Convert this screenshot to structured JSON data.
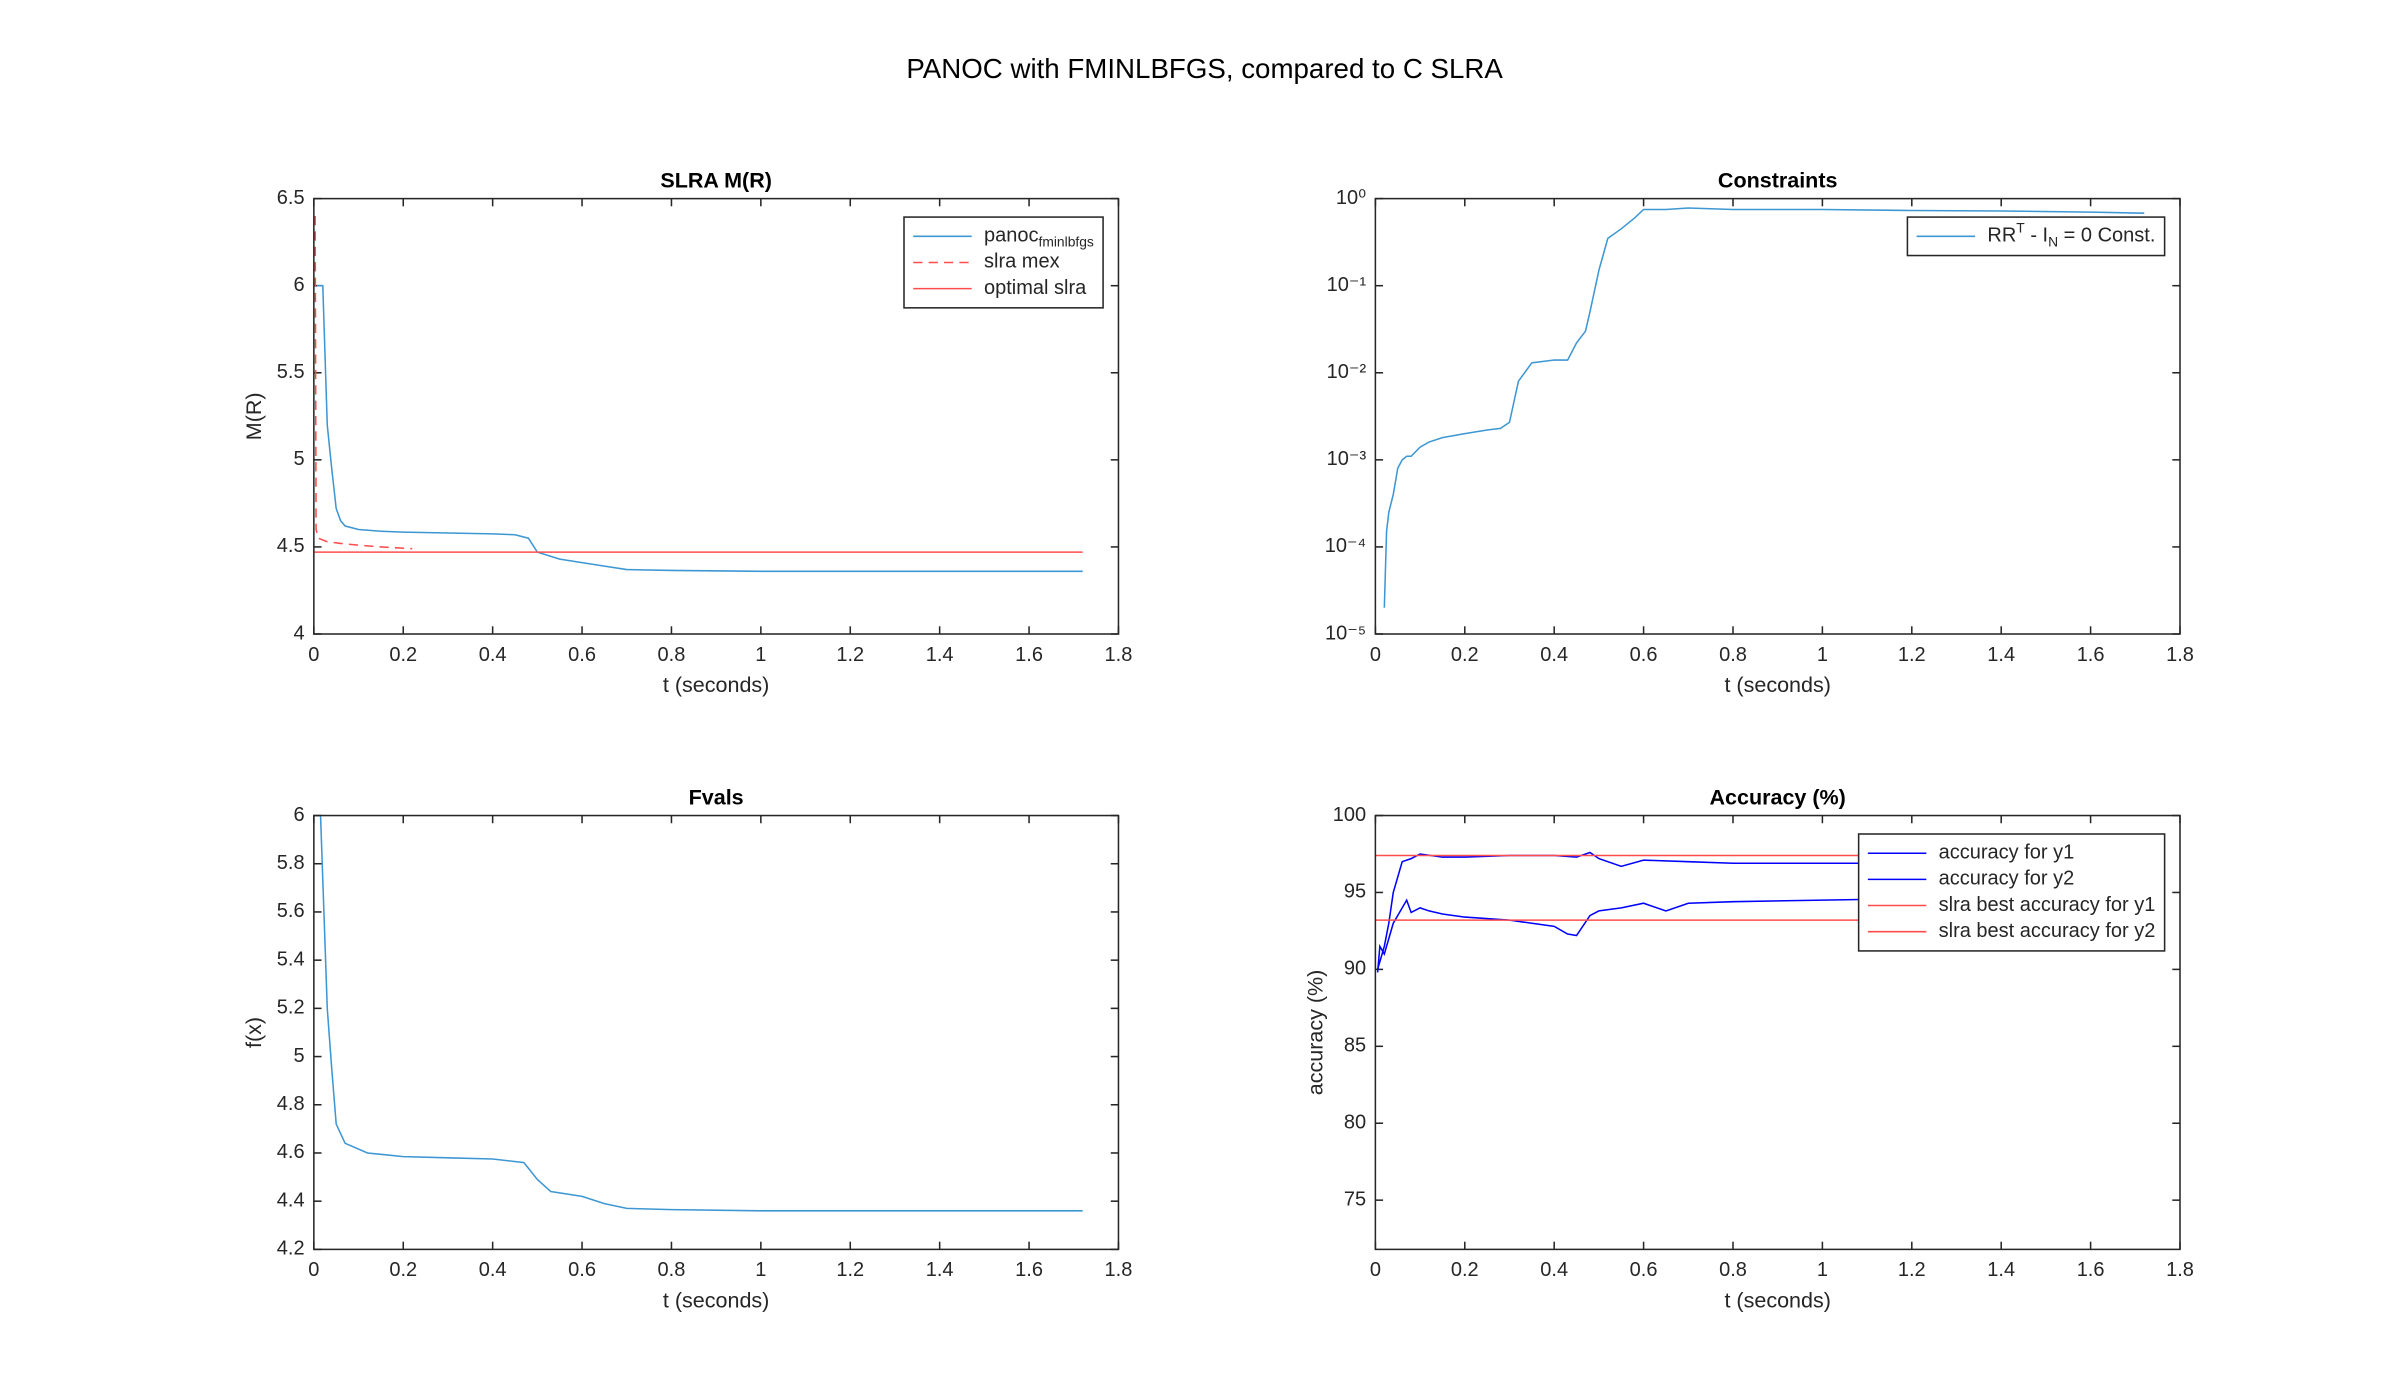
{
  "title": "PANOC with FMINLBFGS, compared to C SLRA",
  "chart_data": [
    {
      "type": "line",
      "title": "SLRA M(R)",
      "xlabel": "t (seconds)",
      "ylabel": "M(R)",
      "xlim": [
        0,
        1.8
      ],
      "xticks": [
        0,
        0.2,
        0.4,
        0.6,
        0.8,
        1,
        1.2,
        1.4,
        1.6,
        1.8
      ],
      "ylim": [
        4,
        6.5
      ],
      "yticks": [
        4,
        4.5,
        5,
        5.5,
        6,
        6.5
      ],
      "legend": "northeast",
      "series": [
        {
          "name": [
            "panoc",
            "fminlbfgs"
          ],
          "color": "#3d97d3",
          "linestyle": "solid",
          "x": [
            0.007,
            0.015,
            0.02,
            0.03,
            0.04,
            0.05,
            0.06,
            0.07,
            0.1,
            0.15,
            0.2,
            0.3,
            0.4,
            0.45,
            0.48,
            0.5,
            0.55,
            0.6,
            0.65,
            0.7,
            0.8,
            1.0,
            1.2,
            1.4,
            1.6,
            1.72
          ],
          "values": [
            6.0,
            6.0,
            6.0,
            5.2,
            4.95,
            4.72,
            4.65,
            4.62,
            4.6,
            4.59,
            4.585,
            4.58,
            4.575,
            4.57,
            4.55,
            4.47,
            4.43,
            4.41,
            4.39,
            4.37,
            4.365,
            4.36,
            4.36,
            4.36,
            4.36,
            4.36
          ]
        },
        {
          "name": "slra mex",
          "color": "#ff4d4d",
          "linestyle": "dashed",
          "x": [
            0.003,
            0.005,
            0.01,
            0.03,
            0.06,
            0.1,
            0.15,
            0.22
          ],
          "values": [
            6.4,
            4.6,
            4.55,
            4.53,
            4.52,
            4.51,
            4.5,
            4.49
          ]
        },
        {
          "name": "optimal slra",
          "color": "#ff4d4d",
          "linestyle": "solid",
          "x": [
            0,
            1.72
          ],
          "values": [
            4.47,
            4.47
          ]
        }
      ]
    },
    {
      "type": "line",
      "title": "Constraints",
      "xlabel": "t (seconds)",
      "xlim": [
        0,
        1.8
      ],
      "xticks": [
        0,
        0.2,
        0.4,
        0.6,
        0.8,
        1,
        1.2,
        1.4,
        1.6,
        1.8
      ],
      "yscale": "log",
      "ylim": [
        1e-05,
        1
      ],
      "yticks": [
        {
          "value": 1e-05,
          "label": "10⁻⁵"
        },
        {
          "value": 0.0001,
          "label": "10⁻⁴"
        },
        {
          "value": 0.001,
          "label": "10⁻³"
        },
        {
          "value": 0.01,
          "label": "10⁻²"
        },
        {
          "value": 0.1,
          "label": "10⁻¹"
        },
        {
          "value": 1,
          "label": "10⁰"
        }
      ],
      "legend": "northeast",
      "series": [
        {
          "name": [
            "RR",
            "T",
            " - I",
            "N",
            " = 0 Const."
          ],
          "color": "#3d97d3",
          "linestyle": "solid",
          "x": [
            0.02,
            0.025,
            0.03,
            0.04,
            0.05,
            0.06,
            0.07,
            0.08,
            0.1,
            0.12,
            0.15,
            0.2,
            0.25,
            0.28,
            0.3,
            0.32,
            0.35,
            0.4,
            0.43,
            0.45,
            0.47,
            0.48,
            0.5,
            0.52,
            0.55,
            0.58,
            0.6,
            0.65,
            0.7,
            0.8,
            1.0,
            1.2,
            1.4,
            1.6,
            1.72
          ],
          "values": [
            2e-05,
            0.00015,
            0.00025,
            0.0004,
            0.0008,
            0.001,
            0.0011,
            0.0011,
            0.0014,
            0.0016,
            0.0018,
            0.002,
            0.0022,
            0.0023,
            0.0027,
            0.008,
            0.013,
            0.014,
            0.014,
            0.022,
            0.03,
            0.05,
            0.15,
            0.35,
            0.45,
            0.6,
            0.75,
            0.75,
            0.78,
            0.75,
            0.75,
            0.73,
            0.72,
            0.7,
            0.68
          ]
        }
      ]
    },
    {
      "type": "line",
      "title": "Fvals",
      "xlabel": "t (seconds)",
      "ylabel": "f(x)",
      "xlim": [
        0,
        1.8
      ],
      "xticks": [
        0,
        0.2,
        0.4,
        0.6,
        0.8,
        1,
        1.2,
        1.4,
        1.6,
        1.8
      ],
      "ylim": [
        4.2,
        6
      ],
      "yticks": [
        4.2,
        4.4,
        4.6,
        4.8,
        5,
        5.2,
        5.4,
        5.6,
        5.8,
        6
      ],
      "series": [
        {
          "color": "#3d97d3",
          "linestyle": "solid",
          "x": [
            0.015,
            0.03,
            0.04,
            0.05,
            0.07,
            0.12,
            0.2,
            0.3,
            0.4,
            0.47,
            0.5,
            0.53,
            0.6,
            0.65,
            0.7,
            0.8,
            1.0,
            1.2,
            1.72
          ],
          "values": [
            6,
            5.2,
            4.95,
            4.72,
            4.64,
            4.6,
            4.585,
            4.58,
            4.575,
            4.56,
            4.49,
            4.44,
            4.42,
            4.39,
            4.37,
            4.365,
            4.36,
            4.36,
            4.36
          ]
        }
      ]
    },
    {
      "type": "line",
      "title": "Accuracy (%)",
      "xlabel": "t (seconds)",
      "ylabel": "accuracy (%)",
      "xlim": [
        0,
        1.8
      ],
      "xticks": [
        0,
        0.2,
        0.4,
        0.6,
        0.8,
        1,
        1.2,
        1.4,
        1.6,
        1.8
      ],
      "ylim": [
        71.8,
        100
      ],
      "yticks": [
        75,
        80,
        85,
        90,
        95,
        100
      ],
      "legend": "northeast",
      "series": [
        {
          "name": "accuracy for y1",
          "color": "#0000ff",
          "linestyle": "solid",
          "x": [
            0.005,
            0.02,
            0.03,
            0.04,
            0.05,
            0.06,
            0.08,
            0.1,
            0.15,
            0.2,
            0.3,
            0.4,
            0.45,
            0.48,
            0.5,
            0.55,
            0.6,
            0.7,
            0.8,
            1.0,
            1.2,
            1.72
          ],
          "values": [
            90,
            91.5,
            93,
            95,
            96,
            97,
            97.2,
            97.5,
            97.3,
            97.3,
            97.4,
            97.4,
            97.3,
            97.6,
            97.2,
            96.7,
            97.1,
            97.0,
            96.9,
            96.9,
            96.9,
            96.9
          ]
        },
        {
          "name": "accuracy for y2",
          "color": "#0000ff",
          "linestyle": "solid",
          "x": [
            0.005,
            0.01,
            0.02,
            0.03,
            0.04,
            0.05,
            0.07,
            0.08,
            0.1,
            0.12,
            0.15,
            0.2,
            0.3,
            0.35,
            0.4,
            0.43,
            0.45,
            0.48,
            0.5,
            0.55,
            0.6,
            0.65,
            0.7,
            0.8,
            1.0,
            1.2,
            1.72
          ],
          "values": [
            89.8,
            91.5,
            91,
            92,
            93,
            93.5,
            94.5,
            93.7,
            94,
            93.8,
            93.6,
            93.4,
            93.2,
            93,
            92.8,
            92.3,
            92.2,
            93.5,
            93.8,
            94,
            94.3,
            93.8,
            94.3,
            94.4,
            94.5,
            94.6,
            94.6
          ]
        },
        {
          "name": "slra best accuracy for y1",
          "color": "#ff4d4d",
          "linestyle": "solid",
          "x": [
            0,
            1.72
          ],
          "values": [
            97.4,
            97.4
          ]
        },
        {
          "name": "slra best accuracy for y2",
          "color": "#ff4d4d",
          "linestyle": "solid",
          "x": [
            0,
            1.72
          ],
          "values": [
            93.2,
            93.2
          ]
        }
      ]
    }
  ]
}
